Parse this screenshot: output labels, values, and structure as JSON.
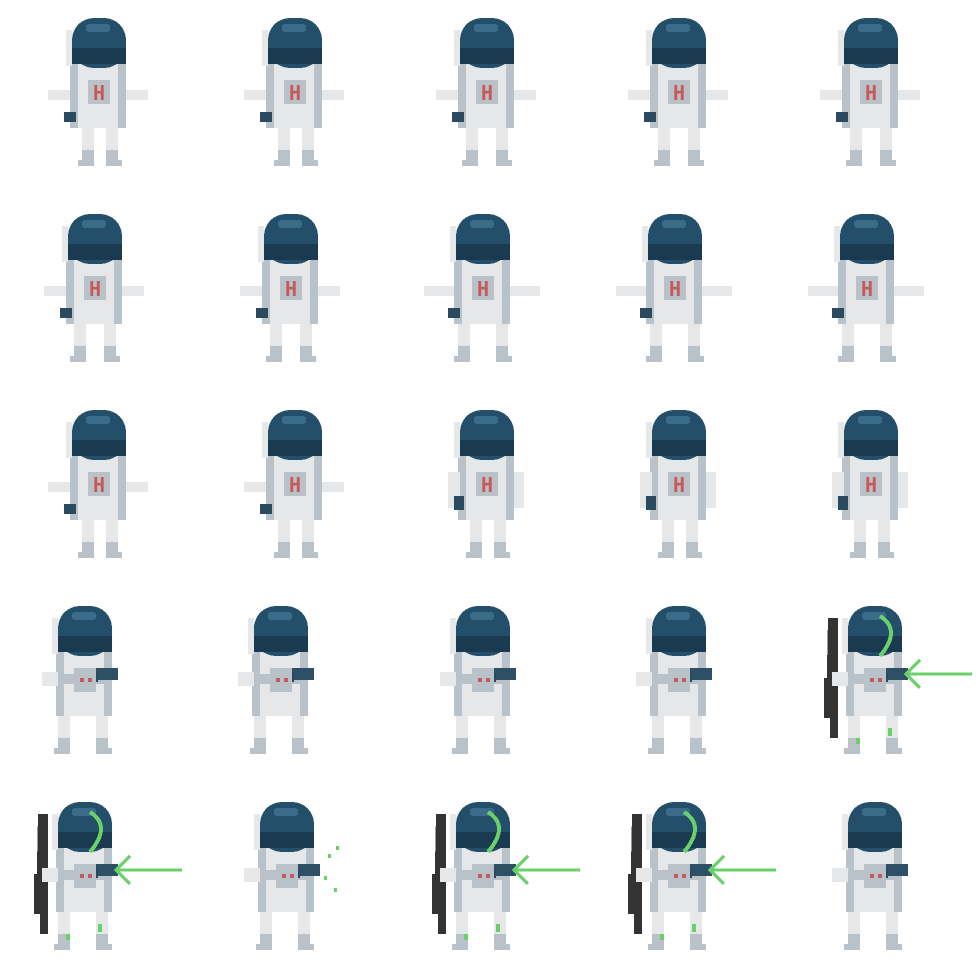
{
  "sprite_sheet": {
    "columns": 5,
    "rows": 5,
    "palette": {
      "helmet": "#244f6a",
      "helmet_dark": "#1a3a52",
      "visor_highlight": "#3a6c8a",
      "suit": "#e6e7e8",
      "suit_shade": "#b8c2c8",
      "badge": "#c65a5a",
      "glove": "#2a4a60",
      "blaster": "#2e5066",
      "laser": "#6ad06a",
      "shadow": "#333333"
    },
    "badge_letter": "H",
    "frames": [
      {
        "pose": "idle",
        "legs": "stand",
        "arms": "out",
        "fire": "none"
      },
      {
        "pose": "idle",
        "legs": "stand",
        "arms": "out",
        "fire": "none"
      },
      {
        "pose": "walk",
        "legs": "step",
        "arms": "out",
        "fire": "none"
      },
      {
        "pose": "walk",
        "legs": "step",
        "arms": "out",
        "fire": "none"
      },
      {
        "pose": "walk",
        "legs": "step",
        "arms": "out",
        "fire": "none"
      },
      {
        "pose": "walk",
        "legs": "step",
        "arms": "out",
        "fire": "none"
      },
      {
        "pose": "walk",
        "legs": "step",
        "arms": "out",
        "fire": "none"
      },
      {
        "pose": "run",
        "legs": "stride",
        "arms": "wide",
        "fire": "none"
      },
      {
        "pose": "run",
        "legs": "stride",
        "arms": "wide",
        "fire": "none"
      },
      {
        "pose": "run",
        "legs": "stride",
        "arms": "wide",
        "fire": "none"
      },
      {
        "pose": "idle",
        "legs": "stand",
        "arms": "out",
        "fire": "none"
      },
      {
        "pose": "idle",
        "legs": "stand",
        "arms": "out",
        "fire": "none"
      },
      {
        "pose": "draw",
        "legs": "stand",
        "arms": "down",
        "fire": "none"
      },
      {
        "pose": "draw",
        "legs": "stand",
        "arms": "down",
        "fire": "none"
      },
      {
        "pose": "draw",
        "legs": "stand",
        "arms": "down",
        "fire": "none"
      },
      {
        "pose": "aim",
        "legs": "brace",
        "arms": "gun",
        "fire": "none"
      },
      {
        "pose": "aim",
        "legs": "brace",
        "arms": "gun",
        "fire": "none"
      },
      {
        "pose": "aim",
        "legs": "brace",
        "arms": "gun",
        "fire": "none"
      },
      {
        "pose": "aim",
        "legs": "brace",
        "arms": "gun",
        "fire": "none"
      },
      {
        "pose": "shoot",
        "legs": "brace",
        "arms": "gun",
        "fire": "beam"
      },
      {
        "pose": "shoot",
        "legs": "brace",
        "arms": "gun",
        "fire": "beam"
      },
      {
        "pose": "shoot",
        "legs": "brace",
        "arms": "gun",
        "fire": "sparks"
      },
      {
        "pose": "shoot",
        "legs": "brace",
        "arms": "gun",
        "fire": "beam"
      },
      {
        "pose": "shoot",
        "legs": "brace",
        "arms": "gun",
        "fire": "beam"
      },
      {
        "pose": "aim",
        "legs": "brace",
        "arms": "gun",
        "fire": "none"
      }
    ]
  }
}
